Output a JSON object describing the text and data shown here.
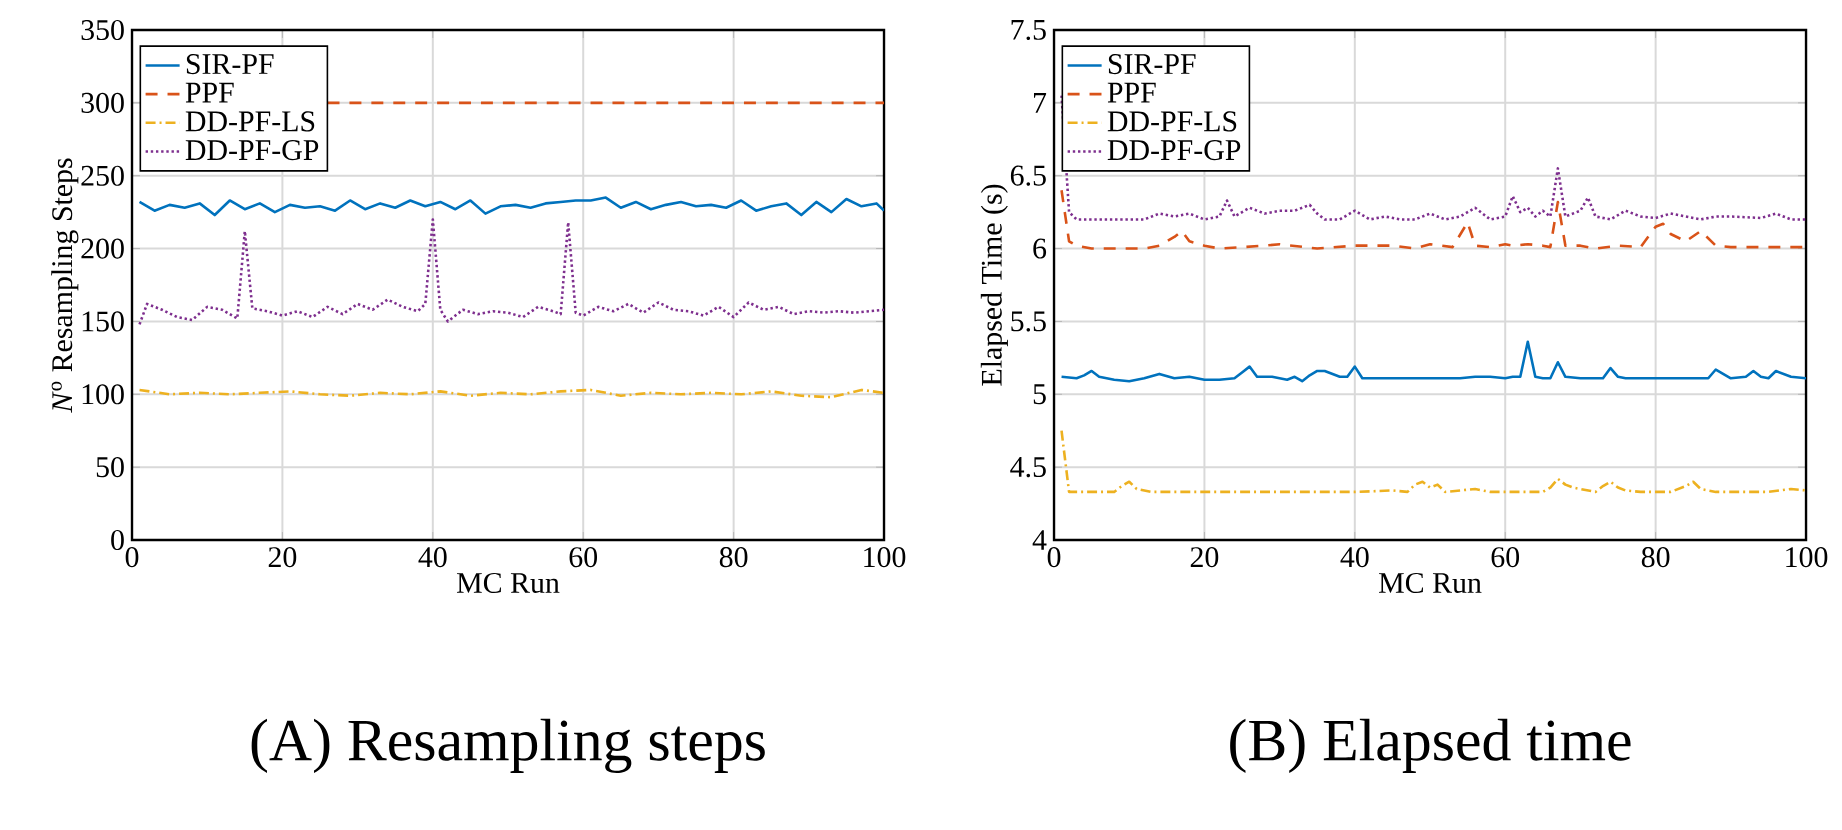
{
  "chart_data": [
    {
      "type": "line",
      "title": "(A) Resampling steps",
      "xlabel": "MC Run",
      "ylabel": "*N*$^{o}$ Resampling Steps",
      "xlim": [
        0,
        100
      ],
      "xticks": [
        0,
        20,
        40,
        60,
        80,
        100
      ],
      "ylim": [
        0,
        350
      ],
      "yticks": [
        0,
        50,
        100,
        150,
        200,
        250,
        300,
        350
      ],
      "grid": true,
      "legend": "top left",
      "series": [
        {
          "name": "SIR-PF",
          "color": "#0072bd",
          "line_style": "solid",
          "x": [
            1,
            3,
            5,
            7,
            9,
            11,
            13,
            15,
            17,
            19,
            21,
            23,
            25,
            27,
            29,
            31,
            33,
            35,
            37,
            39,
            41,
            43,
            45,
            47,
            49,
            51,
            53,
            55,
            57,
            59,
            61,
            63,
            65,
            67,
            69,
            71,
            73,
            75,
            77,
            79,
            81,
            83,
            85,
            87,
            89,
            91,
            93,
            95,
            97,
            99,
            100
          ],
          "values": [
            232,
            226,
            230,
            228,
            231,
            223,
            233,
            227,
            231,
            225,
            230,
            228,
            229,
            226,
            233,
            227,
            231,
            228,
            233,
            229,
            232,
            227,
            233,
            224,
            229,
            230,
            228,
            231,
            232,
            233,
            233,
            235,
            228,
            232,
            227,
            230,
            232,
            229,
            230,
            228,
            233,
            226,
            229,
            231,
            223,
            232,
            225,
            234,
            229,
            231,
            226
          ]
        },
        {
          "name": "PPF",
          "color": "#d95319",
          "line_style": "dashed",
          "x": [
            26,
            100
          ],
          "values": [
            300,
            300
          ]
        },
        {
          "name": "DD-PF-LS",
          "color": "#edb120",
          "line_style": "dashdot",
          "x": [
            1,
            5,
            9,
            13,
            17,
            21,
            25,
            29,
            33,
            37,
            41,
            45,
            49,
            53,
            57,
            61,
            65,
            69,
            73,
            77,
            81,
            85,
            89,
            93,
            97,
            100
          ],
          "values": [
            103,
            100,
            101,
            100,
            101,
            102,
            100,
            99,
            101,
            100,
            102,
            99,
            101,
            100,
            102,
            103,
            99,
            101,
            100,
            101,
            100,
            102,
            99,
            98,
            103,
            101
          ]
        },
        {
          "name": "DD-PF-GP",
          "color": "#7e2f8e",
          "line_style": "dotted",
          "x": [
            1,
            2,
            4,
            6,
            8,
            10,
            12,
            14,
            15,
            16,
            18,
            20,
            22,
            24,
            26,
            28,
            30,
            32,
            34,
            36,
            38,
            39,
            40,
            41,
            42,
            44,
            46,
            48,
            50,
            52,
            54,
            56,
            57,
            58,
            59,
            60,
            62,
            64,
            66,
            68,
            70,
            72,
            74,
            76,
            78,
            80,
            82,
            84,
            86,
            88,
            90,
            92,
            94,
            96,
            98,
            100
          ],
          "values": [
            148,
            162,
            158,
            153,
            151,
            160,
            158,
            152,
            212,
            159,
            157,
            154,
            157,
            153,
            160,
            155,
            162,
            158,
            165,
            160,
            157,
            162,
            220,
            158,
            150,
            158,
            155,
            157,
            156,
            153,
            160,
            157,
            155,
            218,
            156,
            154,
            160,
            157,
            162,
            156,
            163,
            158,
            157,
            154,
            160,
            153,
            163,
            158,
            160,
            155,
            157,
            156,
            157,
            156,
            157,
            158
          ]
        }
      ]
    },
    {
      "type": "line",
      "title": "(B) Elapsed time",
      "xlabel": "MC Run",
      "ylabel": "Elapsed Time (s)",
      "xlim": [
        0,
        100
      ],
      "xticks": [
        0,
        20,
        40,
        60,
        80,
        100
      ],
      "ylim": [
        4,
        7.5
      ],
      "yticks": [
        4,
        4.5,
        5,
        5.5,
        6,
        6.5,
        7,
        7.5
      ],
      "grid": true,
      "legend": "top left",
      "series": [
        {
          "name": "SIR-PF",
          "color": "#0072bd",
          "line_style": "solid",
          "x": [
            1,
            3,
            4,
            5,
            6,
            8,
            10,
            12,
            14,
            16,
            18,
            20,
            22,
            24,
            25,
            26,
            27,
            29,
            31,
            32,
            33,
            34,
            35,
            36,
            38,
            39,
            40,
            41,
            43,
            46,
            50,
            54,
            56,
            58,
            60,
            61,
            62,
            63,
            64,
            65,
            66,
            67,
            68,
            70,
            73,
            74,
            75,
            76,
            78,
            80,
            84,
            86,
            87,
            88,
            90,
            92,
            93,
            94,
            95,
            96,
            98,
            100
          ],
          "values": [
            5.12,
            5.11,
            5.13,
            5.16,
            5.12,
            5.1,
            5.09,
            5.11,
            5.14,
            5.11,
            5.12,
            5.1,
            5.1,
            5.11,
            5.15,
            5.19,
            5.12,
            5.12,
            5.1,
            5.12,
            5.09,
            5.13,
            5.16,
            5.16,
            5.12,
            5.12,
            5.19,
            5.11,
            5.11,
            5.11,
            5.11,
            5.11,
            5.12,
            5.12,
            5.11,
            5.12,
            5.12,
            5.36,
            5.12,
            5.11,
            5.11,
            5.22,
            5.12,
            5.11,
            5.11,
            5.18,
            5.12,
            5.11,
            5.11,
            5.11,
            5.11,
            5.11,
            5.11,
            5.17,
            5.11,
            5.12,
            5.16,
            5.12,
            5.11,
            5.16,
            5.12,
            5.11
          ]
        },
        {
          "name": "PPF",
          "color": "#d95319",
          "line_style": "dashed",
          "x": [
            1,
            2,
            3,
            5,
            7,
            10,
            12,
            14,
            16,
            17,
            18,
            20,
            22,
            25,
            28,
            30,
            35,
            40,
            45,
            48,
            50,
            53,
            55,
            56,
            58,
            60,
            61,
            63,
            65,
            66,
            67,
            68,
            70,
            72,
            75,
            78,
            80,
            81,
            82,
            84,
            86,
            88,
            90,
            92,
            95,
            100
          ],
          "values": [
            6.4,
            6.05,
            6.02,
            6.0,
            6.0,
            6.0,
            6.0,
            6.02,
            6.08,
            6.12,
            6.05,
            6.02,
            6.0,
            6.01,
            6.02,
            6.03,
            6.0,
            6.02,
            6.02,
            6.0,
            6.03,
            6.01,
            6.18,
            6.02,
            6.01,
            6.03,
            6.02,
            6.03,
            6.02,
            6.01,
            6.32,
            6.02,
            6.02,
            6.0,
            6.02,
            6.01,
            6.15,
            6.17,
            6.1,
            6.05,
            6.12,
            6.02,
            6.01,
            6.01,
            6.01,
            6.01
          ]
        },
        {
          "name": "DD-PF-LS",
          "color": "#edb120",
          "line_style": "dashdot",
          "x": [
            1,
            2,
            3,
            5,
            7,
            8,
            9,
            10,
            11,
            13,
            15,
            20,
            30,
            40,
            45,
            47,
            48,
            49,
            50,
            51,
            52,
            54,
            56,
            58,
            60,
            62,
            64,
            65,
            66,
            67,
            68,
            69,
            70,
            72,
            73,
            74,
            75,
            76,
            78,
            80,
            81,
            82,
            84,
            85,
            86,
            88,
            90,
            95,
            98,
            100
          ],
          "values": [
            4.75,
            4.33,
            4.33,
            4.33,
            4.33,
            4.33,
            4.37,
            4.4,
            4.35,
            4.33,
            4.33,
            4.33,
            4.33,
            4.33,
            4.34,
            4.33,
            4.38,
            4.4,
            4.36,
            4.38,
            4.33,
            4.34,
            4.35,
            4.33,
            4.33,
            4.33,
            4.33,
            4.33,
            4.36,
            4.42,
            4.38,
            4.36,
            4.35,
            4.33,
            4.37,
            4.4,
            4.36,
            4.34,
            4.33,
            4.33,
            4.33,
            4.33,
            4.37,
            4.4,
            4.35,
            4.33,
            4.33,
            4.33,
            4.35,
            4.34
          ]
        },
        {
          "name": "DD-PF-GP",
          "color": "#7e2f8e",
          "line_style": "dotted",
          "x": [
            1,
            2,
            3,
            5,
            8,
            12,
            14,
            16,
            18,
            20,
            22,
            23,
            24,
            26,
            28,
            30,
            32,
            34,
            35,
            36,
            38,
            40,
            42,
            44,
            46,
            48,
            50,
            52,
            54,
            56,
            58,
            60,
            61,
            62,
            63,
            64,
            65,
            66,
            67,
            68,
            70,
            71,
            72,
            74,
            76,
            78,
            80,
            82,
            84,
            86,
            88,
            90,
            94,
            96,
            98,
            100
          ],
          "values": [
            7.05,
            6.25,
            6.2,
            6.2,
            6.2,
            6.2,
            6.24,
            6.22,
            6.24,
            6.2,
            6.22,
            6.33,
            6.22,
            6.28,
            6.24,
            6.26,
            6.26,
            6.3,
            6.24,
            6.2,
            6.2,
            6.26,
            6.2,
            6.22,
            6.2,
            6.2,
            6.24,
            6.2,
            6.22,
            6.28,
            6.2,
            6.22,
            6.36,
            6.25,
            6.28,
            6.22,
            6.26,
            6.22,
            6.55,
            6.22,
            6.26,
            6.35,
            6.22,
            6.2,
            6.26,
            6.22,
            6.21,
            6.24,
            6.22,
            6.2,
            6.22,
            6.22,
            6.21,
            6.24,
            6.2,
            6.2
          ]
        }
      ]
    }
  ]
}
